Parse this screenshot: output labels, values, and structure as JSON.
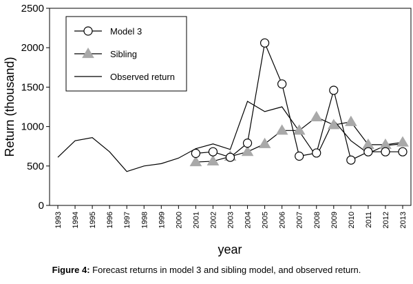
{
  "caption": {
    "label": "Figure 4:",
    "text": "Forecast returns in model 3 and sibling model, and observed return."
  },
  "chart_data": {
    "type": "line",
    "title": "",
    "xlabel": "year",
    "ylabel": "Return (thousand)",
    "ylim": [
      0,
      2500
    ],
    "yticks": [
      0,
      500,
      1000,
      1500,
      2000,
      2500
    ],
    "x": [
      1993,
      1994,
      1995,
      1996,
      1997,
      1998,
      1999,
      2000,
      2001,
      2002,
      2003,
      2004,
      2005,
      2006,
      2007,
      2008,
      2009,
      2010,
      2011,
      2012,
      2013
    ],
    "xtick_labels": [
      "1993",
      "1994",
      "1995",
      "1996",
      "1997",
      "1998",
      "1999",
      "2000",
      "2001",
      "2002",
      "2003",
      "2004",
      "2005",
      "2006",
      "2007",
      "2008",
      "2009",
      "2010",
      "2011",
      "2012",
      "2013"
    ],
    "grid": false,
    "legend_position": "top-left",
    "series": [
      {
        "name": "Model 3",
        "marker": "circle",
        "color": "#000000",
        "x": [
          2001,
          2002,
          2003,
          2004,
          2005,
          2006,
          2007,
          2008,
          2009,
          2010,
          2011,
          2012,
          2013
        ],
        "values": [
          660,
          680,
          610,
          790,
          2060,
          1540,
          625,
          665,
          1460,
          575,
          680,
          680,
          680
        ]
      },
      {
        "name": "Sibling",
        "marker": "triangle",
        "color": "#a9a9a9",
        "x": [
          2001,
          2002,
          2003,
          2004,
          2005,
          2006,
          2007,
          2008,
          2009,
          2010,
          2011,
          2012,
          2013
        ],
        "values": [
          550,
          560,
          620,
          680,
          780,
          950,
          950,
          1120,
          1020,
          1060,
          770,
          770,
          800
        ]
      },
      {
        "name": "Observed return",
        "marker": "none",
        "color": "#000000",
        "x": [
          1993,
          1994,
          1995,
          1996,
          1997,
          1998,
          1999,
          2000,
          2001,
          2002,
          2003,
          2004,
          2005,
          2006,
          2007,
          2008,
          2009,
          2010,
          2011,
          2012,
          2013
        ],
        "values": [
          610,
          820,
          860,
          680,
          430,
          500,
          530,
          600,
          720,
          780,
          710,
          1320,
          1190,
          1250,
          940,
          620,
          1080,
          820,
          660,
          760,
          780
        ]
      }
    ]
  }
}
